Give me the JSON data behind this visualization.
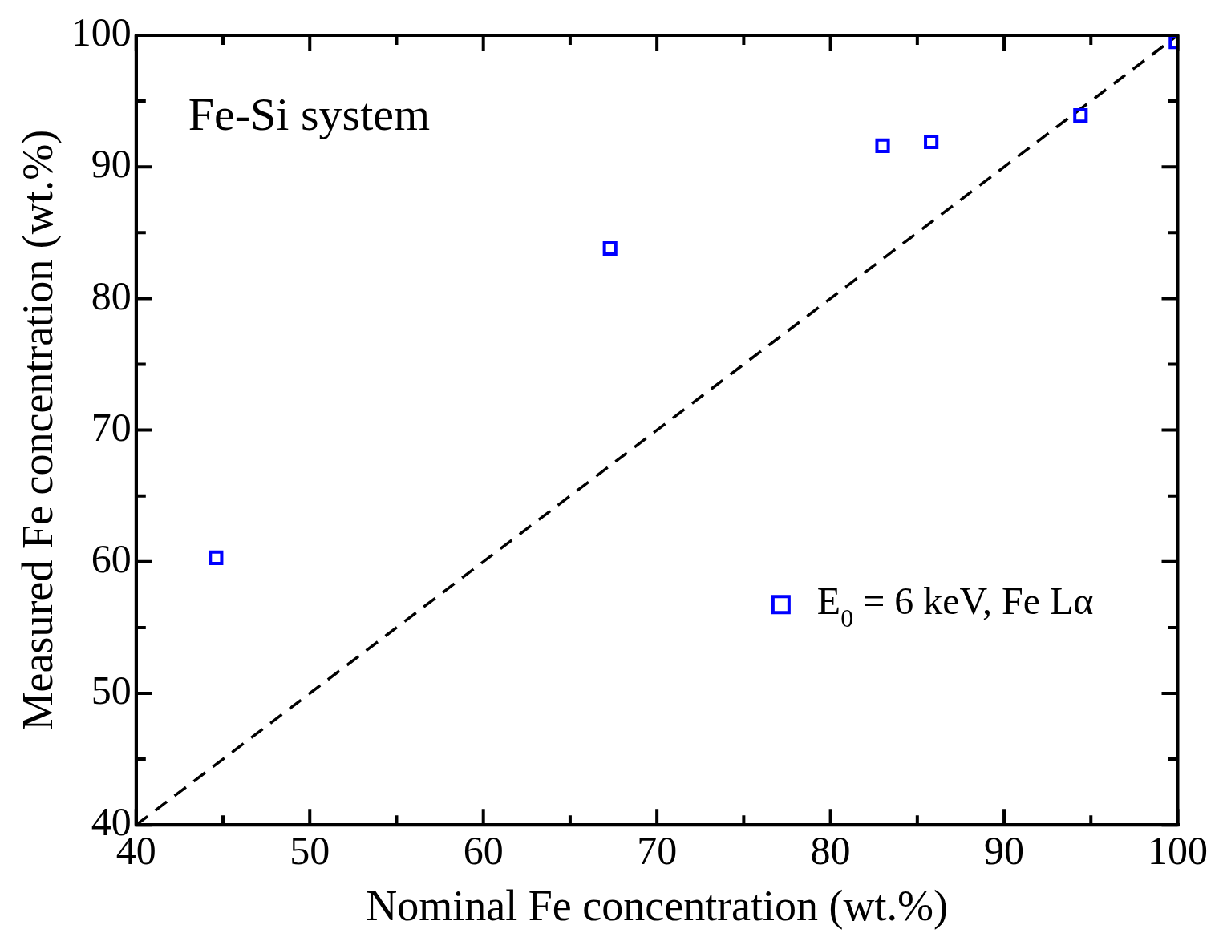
{
  "chart_data": {
    "type": "scatter",
    "xlabel": "Nominal Fe concentration (wt.%)",
    "ylabel": "Measured Fe concentration (wt.%)",
    "annotations": [
      "Fe-Si system"
    ],
    "xlim": [
      40,
      100
    ],
    "ylim": [
      40,
      100
    ],
    "xticks": [
      40,
      {
        "value": 45,
        "label": null
      },
      50,
      {
        "value": 55,
        "label": null
      },
      60,
      {
        "value": 65,
        "label": null
      },
      70,
      {
        "value": 75,
        "label": null
      },
      80,
      {
        "value": 85,
        "label": null
      },
      90,
      {
        "value": 95,
        "label": null
      },
      100
    ],
    "yticks": [
      40,
      {
        "value": 45,
        "label": null
      },
      50,
      {
        "value": 55,
        "label": null
      },
      60,
      {
        "value": 65,
        "label": null
      },
      70,
      {
        "value": 75,
        "label": null
      },
      80,
      {
        "value": 85,
        "label": null
      },
      90,
      {
        "value": 95,
        "label": null
      },
      100
    ],
    "grid": false,
    "legend": "bottom right",
    "series": [
      {
        "name": "E$_{0}$ = 6 keV, Fe Lα",
        "color": "#0000ff",
        "marker": "square",
        "x": [
          44.6,
          67.3,
          83.0,
          85.8,
          94.4,
          99.9
        ],
        "values": [
          60.3,
          83.8,
          91.6,
          91.9,
          93.9,
          99.5
        ]
      },
      {
        "type": "line",
        "color": "#000000",
        "line_style": "dashed",
        "marker": "none",
        "x": [
          40,
          100
        ],
        "values": [
          40,
          100
        ]
      }
    ]
  }
}
